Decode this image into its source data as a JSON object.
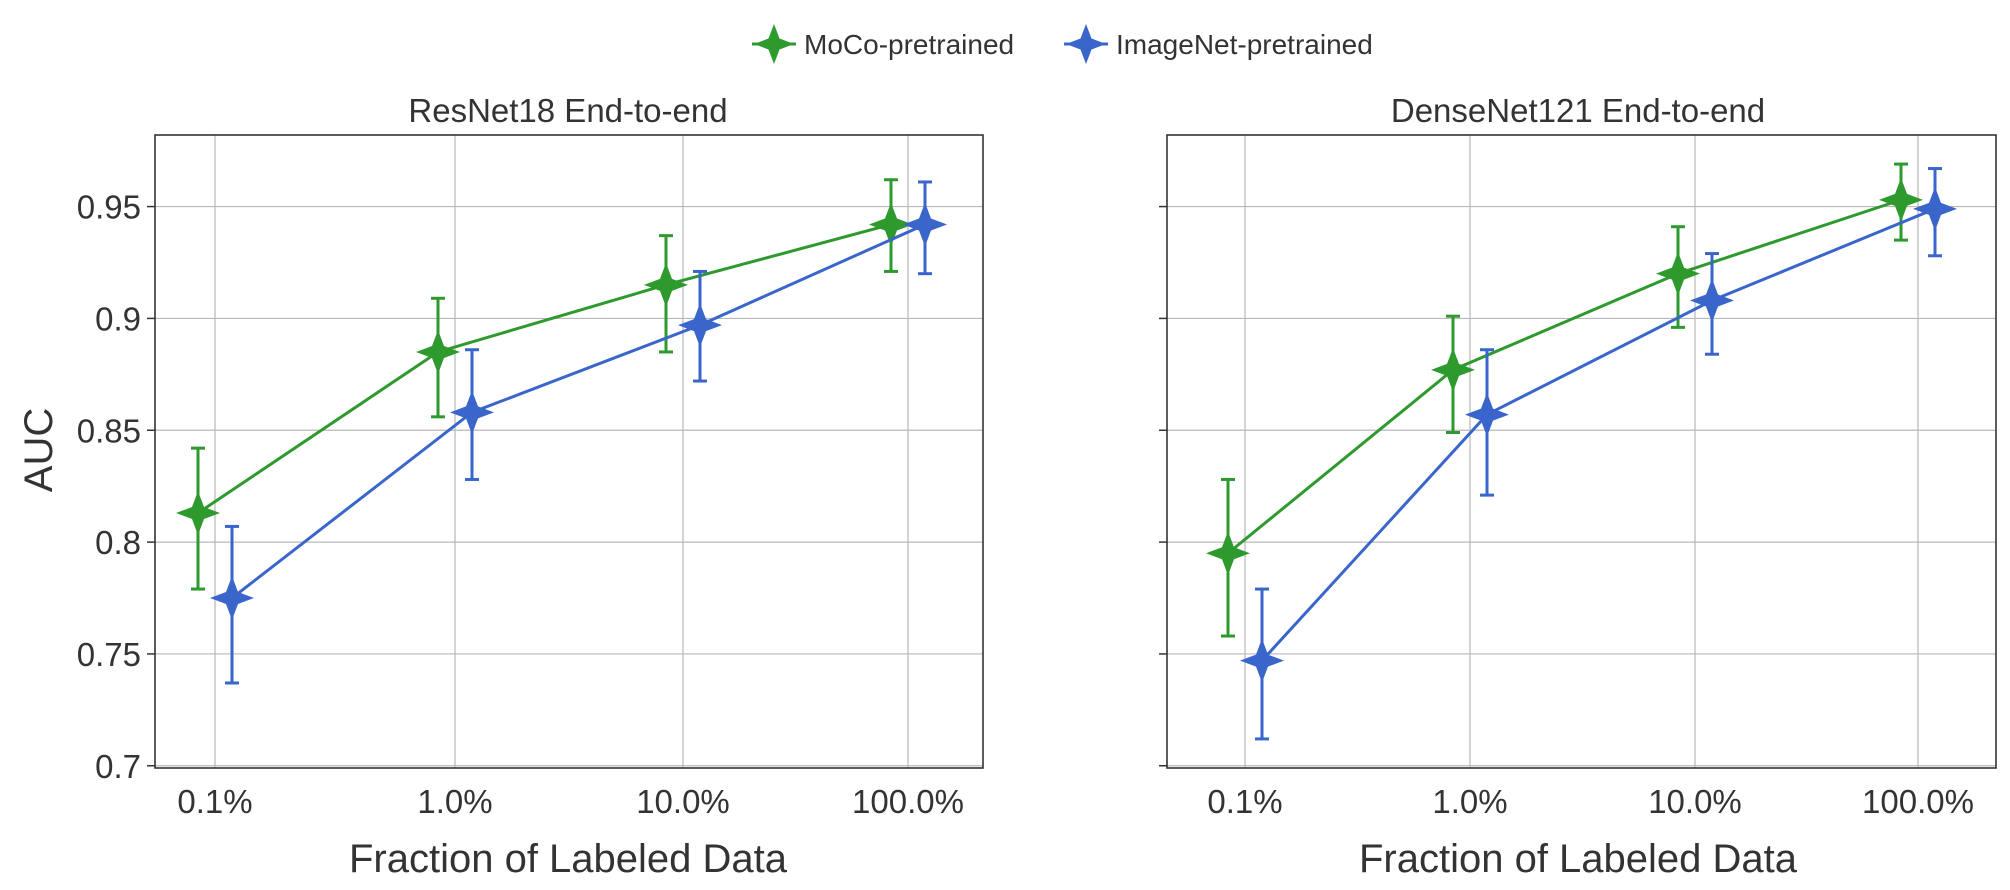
{
  "legend": {
    "items": [
      {
        "name": "MoCo-pretrained",
        "color": "#2e9a2e",
        "icon": "star-diamond-marker"
      },
      {
        "name": "ImageNet-pretrained",
        "color": "#3a66cc",
        "icon": "star-diamond-marker"
      }
    ]
  },
  "chart_data": [
    {
      "type": "line",
      "title": "ResNet18 End-to-end",
      "xlabel": "Fraction of Labeled Data",
      "ylabel": "AUC",
      "categories": [
        "0.1%",
        "1.0%",
        "10.0%",
        "100.0%"
      ],
      "yticks": [
        "0.7",
        "0.75",
        "0.8",
        "0.85",
        "0.9",
        "0.95"
      ],
      "ylim": [
        0.699,
        0.982
      ],
      "error_bars": true,
      "series": [
        {
          "name": "MoCo-pretrained",
          "values": [
            0.813,
            0.885,
            0.915,
            0.942
          ],
          "err_low": [
            0.779,
            0.856,
            0.885,
            0.921
          ],
          "err_high": [
            0.842,
            0.909,
            0.937,
            0.962
          ]
        },
        {
          "name": "ImageNet-pretrained",
          "values": [
            0.775,
            0.858,
            0.897,
            0.942
          ],
          "err_low": [
            0.737,
            0.828,
            0.872,
            0.92
          ],
          "err_high": [
            0.807,
            0.886,
            0.921,
            0.961
          ]
        }
      ]
    },
    {
      "type": "line",
      "title": "DenseNet121 End-to-end",
      "xlabel": "Fraction of Labeled Data",
      "ylabel": "",
      "categories": [
        "0.1%",
        "1.0%",
        "10.0%",
        "100.0%"
      ],
      "yticks": [],
      "ylim": [
        0.699,
        0.982
      ],
      "error_bars": true,
      "series": [
        {
          "name": "MoCo-pretrained",
          "values": [
            0.795,
            0.877,
            0.92,
            0.953
          ],
          "err_low": [
            0.758,
            0.849,
            0.896,
            0.935
          ],
          "err_high": [
            0.828,
            0.901,
            0.941,
            0.969
          ]
        },
        {
          "name": "ImageNet-pretrained",
          "values": [
            0.747,
            0.857,
            0.908,
            0.949
          ],
          "err_low": [
            0.712,
            0.821,
            0.884,
            0.928
          ],
          "err_high": [
            0.779,
            0.886,
            0.929,
            0.967
          ]
        }
      ]
    }
  ]
}
